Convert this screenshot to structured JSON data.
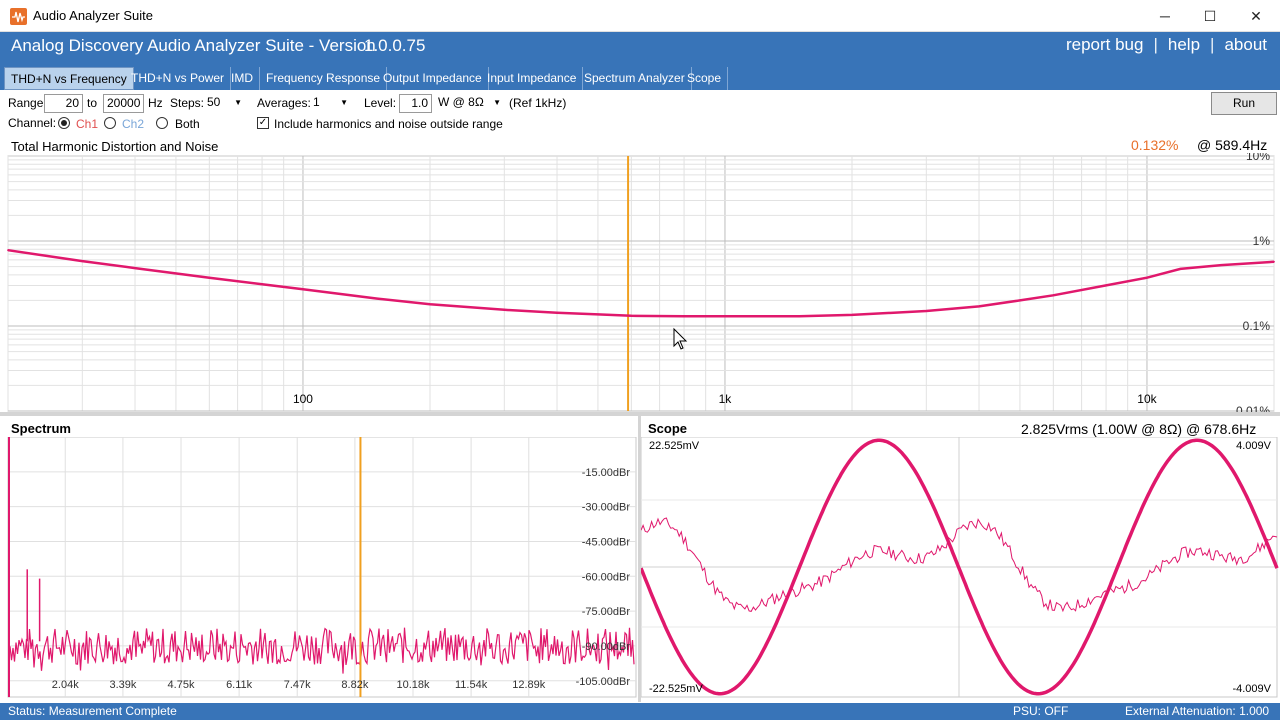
{
  "window": {
    "title": "Audio Analyzer Suite",
    "minimize": "─",
    "maximize": "☐",
    "close": "✕"
  },
  "header": {
    "title": "Analog Discovery Audio Analyzer Suite - Version",
    "version": "1.0.0.75",
    "links": [
      "report bug",
      "help",
      "about"
    ],
    "separator": "|"
  },
  "tabs": [
    "THD+N vs Frequency",
    "THD+N vs Power",
    "IMD",
    "Frequency Response",
    "Output Impedance",
    "Input Impedance",
    "Spectrum Analyzer",
    "Scope"
  ],
  "active_tab": "THD+N vs Frequency",
  "controls": {
    "range_label": "Range:",
    "range_from": "20",
    "to_label": "to",
    "range_to": "20000",
    "hz_label": "Hz",
    "steps_label": "Steps:",
    "steps_value": "50",
    "averages_label": "Averages:",
    "averages_value": "1",
    "level_label": "Level:",
    "level_value": "1.0",
    "level_unit": "W @ 8Ω",
    "level_ref": "(Ref 1kHz)",
    "channel_label": "Channel:",
    "ch1": "Ch1",
    "ch2": "Ch2",
    "both": "Both",
    "include_label": "Include harmonics and noise outside range",
    "include_checked": true,
    "run_label": "Run"
  },
  "colors": {
    "accent": "#3874b8",
    "trace": "#e0186c",
    "cursor": "#f0a020",
    "reading": "#e8702a"
  },
  "chart_data": [
    {
      "type": "line",
      "title": "Total Harmonic Distortion and Noise",
      "reading_value": "0.132%",
      "reading_freq": "@ 589.4Hz",
      "x_scale": "log",
      "y_scale": "log",
      "xlim": [
        20,
        20000
      ],
      "ylim": [
        0.01,
        10
      ],
      "x_ticks": [
        {
          "value": 100,
          "label": "100"
        },
        {
          "value": 1000,
          "label": "1k"
        },
        {
          "value": 10000,
          "label": "10k"
        }
      ],
      "y_ticks": [
        {
          "value": 10,
          "label": "10%"
        },
        {
          "value": 1,
          "label": "1%"
        },
        {
          "value": 0.1,
          "label": "0.1%"
        },
        {
          "value": 0.01,
          "label": "0.01%"
        }
      ],
      "cursor_x": 589.4,
      "series": [
        {
          "x": [
            20,
            30,
            40,
            60,
            80,
            100,
            150,
            200,
            300,
            400,
            500,
            600,
            800,
            1000,
            1500,
            2000,
            3000,
            4000,
            5000,
            6000,
            8000,
            10000,
            12000,
            15000,
            20000
          ],
          "values": [
            0.78,
            0.58,
            0.48,
            0.37,
            0.31,
            0.27,
            0.21,
            0.18,
            0.155,
            0.143,
            0.137,
            0.132,
            0.13,
            0.13,
            0.13,
            0.135,
            0.15,
            0.17,
            0.2,
            0.23,
            0.3,
            0.37,
            0.47,
            0.52,
            0.57
          ]
        }
      ]
    },
    {
      "type": "line",
      "title": "Spectrum",
      "xlim": [
        700,
        15400
      ],
      "ylim": [
        -112,
        0
      ],
      "x_ticks": [
        {
          "value": 2040,
          "label": "2.04k"
        },
        {
          "value": 3390,
          "label": "3.39k"
        },
        {
          "value": 4750,
          "label": "4.75k"
        },
        {
          "value": 6110,
          "label": "6.11k"
        },
        {
          "value": 7470,
          "label": "7.47k"
        },
        {
          "value": 8820,
          "label": "8.82k"
        },
        {
          "value": 10180,
          "label": "10.18k"
        },
        {
          "value": 11540,
          "label": "11.54k"
        },
        {
          "value": 12890,
          "label": "12.89k"
        }
      ],
      "y_ticks": [
        {
          "value": -15,
          "label": "-15.00dBr"
        },
        {
          "value": -30,
          "label": "-30.00dBr"
        },
        {
          "value": -45,
          "label": "-45.00dBr"
        },
        {
          "value": -60,
          "label": "-60.00dBr"
        },
        {
          "value": -75,
          "label": "-75.00dBr"
        },
        {
          "value": -90,
          "label": "-90.00dBr"
        },
        {
          "value": -105,
          "label": "-105.00dBr"
        }
      ],
      "cursor_x": 8950,
      "fundamental_x": 700,
      "spurs": [
        {
          "x": 1150,
          "y": -57
        },
        {
          "x": 1440,
          "y": -61
        }
      ]
    },
    {
      "type": "line",
      "title": "Scope",
      "reading": "2.825Vrms (1.00W @ 8Ω) @ 678.6Hz",
      "left_axis": {
        "max_label": "22.525mV",
        "min_label": "-22.525mV",
        "max": 22.525,
        "min": -22.525
      },
      "right_axis": {
        "max_label": "4.009V",
        "min_label": "-4.009V",
        "max": 4.009,
        "min": -4.009
      },
      "series": [
        {
          "axis": "right",
          "amplitude": 4.0,
          "cycles": 2.0
        },
        {
          "axis": "left",
          "amplitude": 8.0,
          "cycles": 2.0
        }
      ]
    }
  ],
  "status": {
    "text": "Status: Measurement Complete",
    "psu": "PSU: OFF",
    "attenuation": "External Attenuation: 1.000"
  }
}
